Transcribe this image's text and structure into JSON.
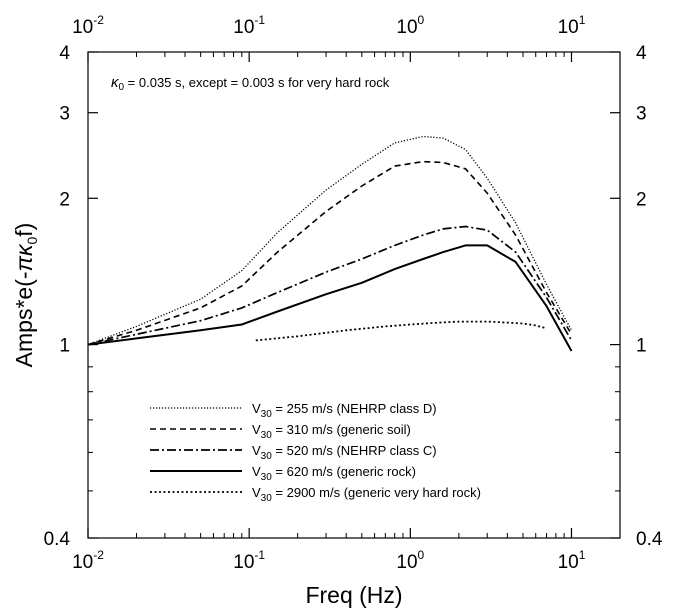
{
  "chart_data": {
    "type": "line",
    "xlabel": "Freq (Hz)",
    "ylabel_main": "Amps*e(-",
    "ylabel_pi": "π",
    "ylabel_kappa": "κ",
    "ylabel_sub": "0",
    "ylabel_end": "f)",
    "x_scale": "log",
    "y_scale": "log",
    "xlim": [
      0.01,
      20
    ],
    "ylim": [
      0.4,
      4
    ],
    "x_ticks": [
      {
        "base": "10",
        "exp": "-2",
        "value": 0.01
      },
      {
        "base": "10",
        "exp": "-1",
        "value": 0.1
      },
      {
        "base": "10",
        "exp": "0",
        "value": 1
      },
      {
        "base": "10",
        "exp": "1",
        "value": 10
      }
    ],
    "y_ticks": [
      {
        "label": "0.4",
        "value": 0.4
      },
      {
        "label": "1",
        "value": 1
      },
      {
        "label": "2",
        "value": 2
      },
      {
        "label": "3",
        "value": 3
      },
      {
        "label": "4",
        "value": 4
      }
    ],
    "grid": false,
    "legend_position": "bottom-center",
    "annotation": {
      "kappa": "κ",
      "sub": "0",
      "text": " = 0.035 s, except = 0.003 s for very hard rock"
    },
    "series": [
      {
        "name": "V30 = 255 m/s (NEHRP class D)",
        "label_v": "V",
        "label_sub": "30",
        "label_rest": " = 255 m/s (NEHRP class D)",
        "style": "dotted-fine",
        "x": [
          0.01,
          0.02,
          0.05,
          0.09,
          0.15,
          0.3,
          0.5,
          0.8,
          1.2,
          1.6,
          2.2,
          3,
          4.5,
          7,
          10
        ],
        "y": [
          1.0,
          1.09,
          1.24,
          1.42,
          1.7,
          2.08,
          2.35,
          2.6,
          2.68,
          2.66,
          2.52,
          2.2,
          1.78,
          1.33,
          1.07
        ]
      },
      {
        "name": "V30 = 310 m/s (generic soil)",
        "label_v": "V",
        "label_sub": "30",
        "label_rest": " = 310 m/s (generic soil)",
        "style": "dashed",
        "x": [
          0.01,
          0.02,
          0.05,
          0.09,
          0.15,
          0.3,
          0.5,
          0.8,
          1.2,
          1.6,
          2.2,
          3,
          4.5,
          7,
          10
        ],
        "y": [
          1.0,
          1.07,
          1.19,
          1.32,
          1.55,
          1.88,
          2.12,
          2.33,
          2.38,
          2.37,
          2.3,
          2.05,
          1.68,
          1.28,
          1.05
        ]
      },
      {
        "name": "V30 = 520 m/s (NEHRP class C)",
        "label_v": "V",
        "label_sub": "30",
        "label_rest": " = 520 m/s (NEHRP class C)",
        "style": "dashdot",
        "x": [
          0.01,
          0.02,
          0.05,
          0.09,
          0.15,
          0.3,
          0.5,
          0.8,
          1.2,
          1.6,
          2.2,
          3,
          4.5,
          7,
          10
        ],
        "y": [
          1.0,
          1.05,
          1.12,
          1.19,
          1.28,
          1.41,
          1.5,
          1.6,
          1.68,
          1.73,
          1.75,
          1.72,
          1.55,
          1.25,
          1.02
        ]
      },
      {
        "name": "V30 = 620 m/s (generic rock)",
        "label_v": "V",
        "label_sub": "30",
        "label_rest": " = 620 m/s (generic rock)",
        "style": "solid",
        "x": [
          0.01,
          0.02,
          0.05,
          0.09,
          0.15,
          0.3,
          0.5,
          0.8,
          1.2,
          1.6,
          2.2,
          3,
          4.5,
          7,
          10
        ],
        "y": [
          1.0,
          1.03,
          1.07,
          1.1,
          1.17,
          1.27,
          1.34,
          1.43,
          1.5,
          1.55,
          1.6,
          1.6,
          1.48,
          1.2,
          0.97
        ]
      },
      {
        "name": "V30 = 2900 m/s (generic very hard rock)",
        "label_v": "V",
        "label_sub": "30",
        "label_rest": " = 2900 m/s (generic very hard rock)",
        "style": "dotted",
        "x": [
          0.11,
          0.2,
          0.4,
          0.7,
          1.0,
          1.5,
          2.0,
          3.0,
          4.0,
          5.0,
          6.0,
          7.0
        ],
        "y": [
          1.02,
          1.04,
          1.07,
          1.09,
          1.1,
          1.11,
          1.115,
          1.115,
          1.11,
          1.105,
          1.095,
          1.08
        ]
      }
    ]
  }
}
